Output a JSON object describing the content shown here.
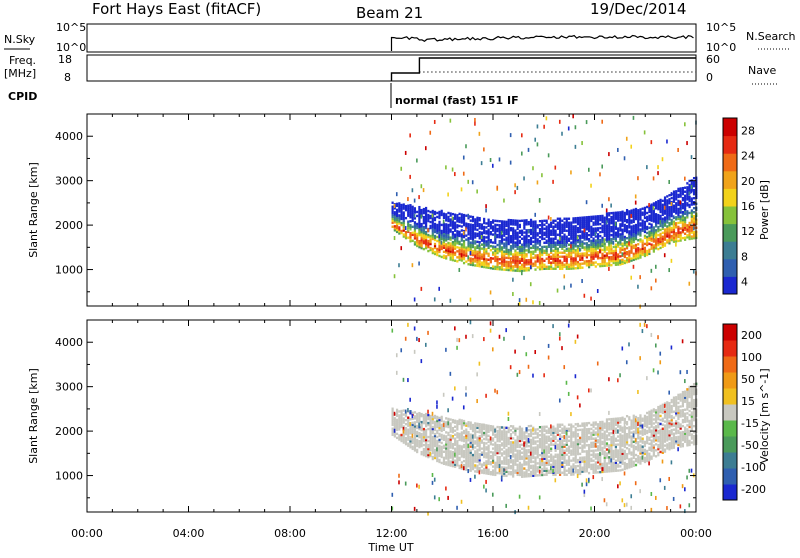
{
  "header": {
    "station": "Fort Hays East (fitACF)",
    "beam": "Beam 21",
    "date": "19/Dec/2014"
  },
  "nsky_panel": {
    "left_label": "N.Sky",
    "left_ticks": [
      "10^5",
      "10^0"
    ],
    "right_label": "N.Search",
    "right_ticks": [
      "10^5",
      "10^0"
    ]
  },
  "freq_panel": {
    "left_label_1": "Freq.",
    "left_label_2": "[MHz]",
    "left_ticks": [
      "18",
      "8"
    ],
    "right_label": "Nave",
    "right_ticks": [
      "60",
      "0"
    ]
  },
  "cpid": {
    "label": "CPID",
    "mode": "normal (fast) 151 IF"
  },
  "colors": {
    "power_scale": [
      "#1a28d0",
      "#2f5fb0",
      "#3c7d93",
      "#4a9a5a",
      "#86c23a",
      "#f2d21a",
      "#f0a31a",
      "#ef6a16",
      "#e62a12",
      "#cc0000"
    ],
    "velocity_scale": [
      "#1a28d0",
      "#2f5fb0",
      "#3c7d93",
      "#4a9a5a",
      "#5ab84a",
      "#c8c8c0",
      "#f0c020",
      "#ef9a16",
      "#ef6a16",
      "#e62a12",
      "#cc0000"
    ],
    "ground_scatter": "#c8c8c0"
  },
  "chart_data": [
    {
      "type": "heatmap",
      "name_ref": "power",
      "xlabel": "Time UT",
      "ylabel": "Slant Range [km]",
      "x_ticks": [
        "00:00",
        "04:00",
        "08:00",
        "12:00",
        "16:00",
        "20:00",
        "00:00"
      ],
      "x_range_hours": [
        0,
        24
      ],
      "y_ticks": [
        "1000",
        "2000",
        "3000",
        "4000"
      ],
      "y_range_km": [
        180,
        4500
      ],
      "colorbar_label": "Power [dB]",
      "colorbar_ticks": [
        "28",
        "24",
        "20",
        "16",
        "12",
        "8",
        "4"
      ],
      "colorbar_range": [
        0,
        32
      ],
      "data_start_hour": 12.0,
      "scatter_band": [
        {
          "hour": 12.0,
          "lower_km": 1900,
          "upper_km": 2500,
          "peak_db": 20
        },
        {
          "hour": 13.0,
          "lower_km": 1500,
          "upper_km": 2400,
          "peak_db": 24
        },
        {
          "hour": 14.0,
          "lower_km": 1250,
          "upper_km": 2300,
          "peak_db": 26
        },
        {
          "hour": 15.0,
          "lower_km": 1100,
          "upper_km": 2200,
          "peak_db": 28
        },
        {
          "hour": 16.0,
          "lower_km": 1000,
          "upper_km": 2100,
          "peak_db": 28
        },
        {
          "hour": 17.0,
          "lower_km": 950,
          "upper_km": 2100,
          "peak_db": 28
        },
        {
          "hour": 18.0,
          "lower_km": 1000,
          "upper_km": 2100,
          "peak_db": 26
        },
        {
          "hour": 19.0,
          "lower_km": 1000,
          "upper_km": 2150,
          "peak_db": 26
        },
        {
          "hour": 20.0,
          "lower_km": 1050,
          "upper_km": 2200,
          "peak_db": 26
        },
        {
          "hour": 21.0,
          "lower_km": 1100,
          "upper_km": 2300,
          "peak_db": 24
        },
        {
          "hour": 22.0,
          "lower_km": 1300,
          "upper_km": 2400,
          "peak_db": 24
        },
        {
          "hour": 23.0,
          "lower_km": 1600,
          "upper_km": 2700,
          "peak_db": 22
        },
        {
          "hour": 24.0,
          "lower_km": 1700,
          "upper_km": 3100,
          "peak_db": 20
        }
      ]
    },
    {
      "type": "heatmap",
      "name_ref": "velocity",
      "xlabel": "Time UT",
      "ylabel": "Slant Range [km]",
      "x_ticks": [
        "00:00",
        "04:00",
        "08:00",
        "12:00",
        "16:00",
        "20:00",
        "00:00"
      ],
      "x_range_hours": [
        0,
        24
      ],
      "y_ticks": [
        "1000",
        "2000",
        "3000",
        "4000"
      ],
      "y_range_km": [
        180,
        4500
      ],
      "colorbar_label": "Velocity [m s^-1]",
      "colorbar_ticks": [
        "200",
        "100",
        "50",
        "15",
        "-15",
        "-50",
        "-100",
        "-200"
      ],
      "colorbar_range": [
        -250,
        250
      ],
      "data_start_hour": 12.0,
      "dominant": "ground scatter (grey)"
    }
  ]
}
